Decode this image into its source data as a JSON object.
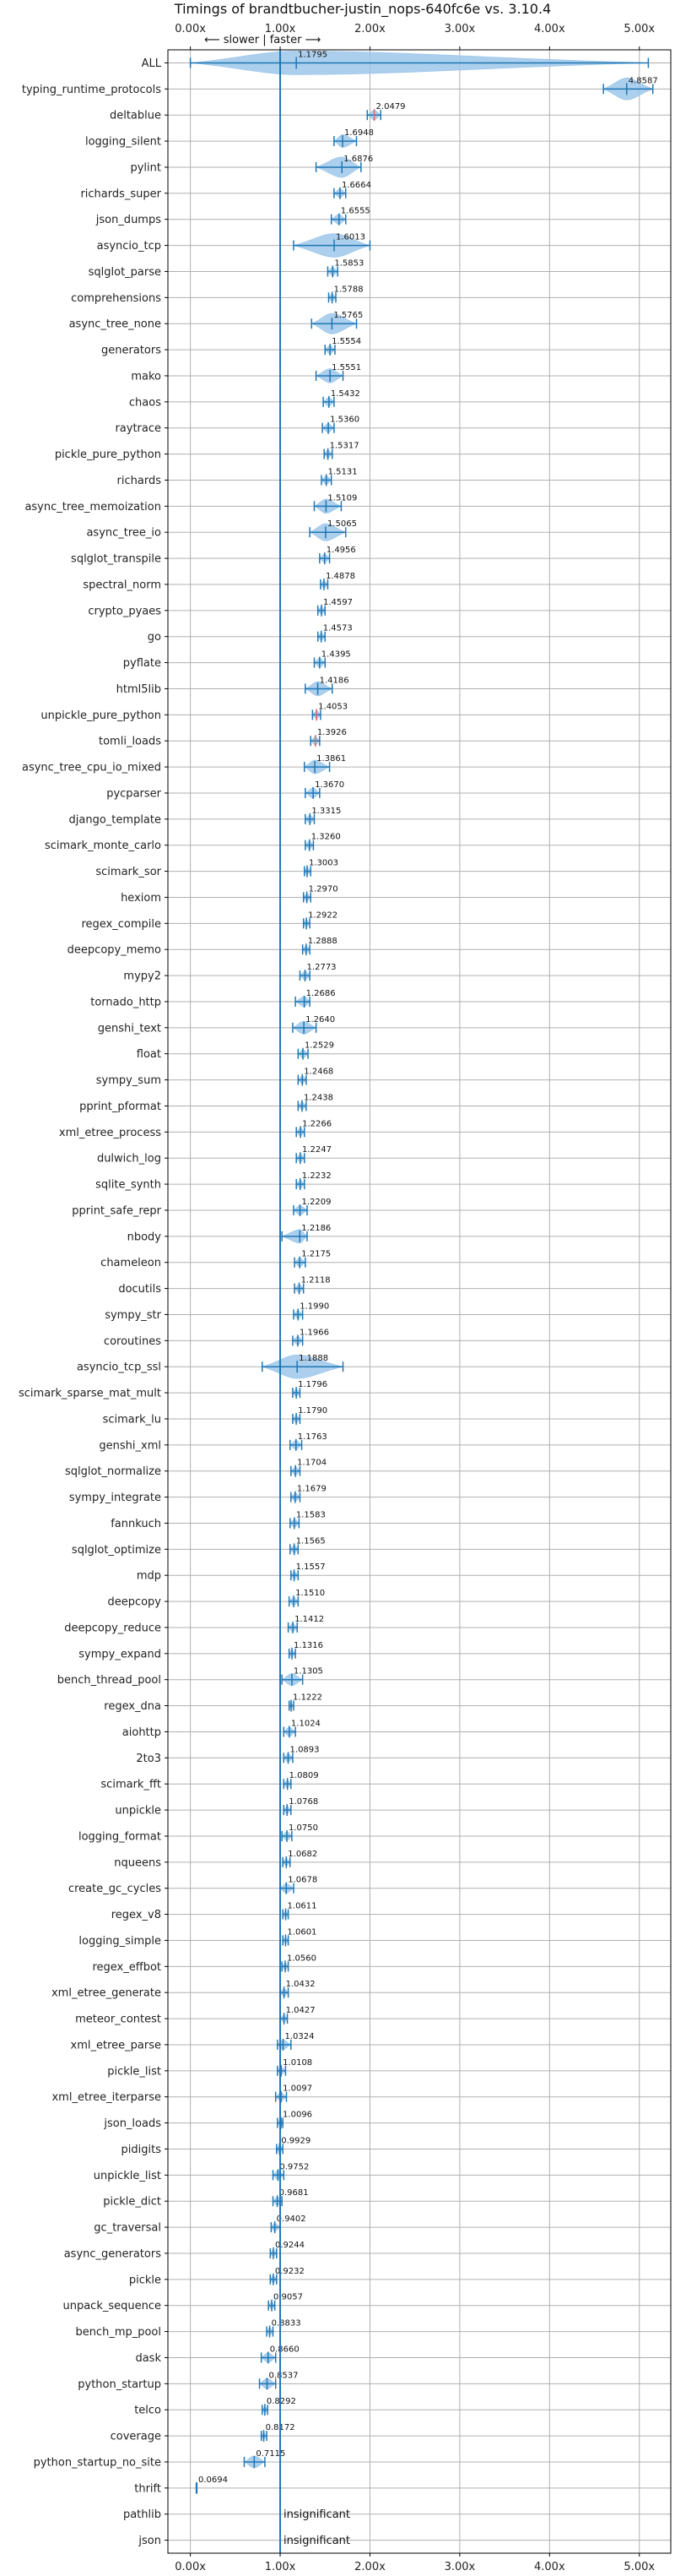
{
  "chart_data": {
    "type": "violin",
    "title": "Timings of brandtbucher-justin_nops-640fc6e vs. 3.10.4",
    "annotation": "⟵ slower  |  faster ⟶",
    "x_ticks": [
      "0.00x",
      "1.00x",
      "2.00x",
      "3.00x",
      "4.00x",
      "5.00x"
    ],
    "x_tick_values": [
      0,
      1,
      2,
      3,
      4,
      5
    ],
    "xlim": [
      -0.25,
      5.35
    ],
    "reference_line": 1.0,
    "grid": true,
    "colors": {
      "violin": "#9ec7ea",
      "line": "#1f77b4",
      "median": "#e06666",
      "grid": "#b0b0b0"
    },
    "categories": [
      "ALL",
      "typing_runtime_protocols",
      "deltablue",
      "logging_silent",
      "pylint",
      "richards_super",
      "json_dumps",
      "asyncio_tcp",
      "sqlglot_parse",
      "comprehensions",
      "async_tree_none",
      "generators",
      "mako",
      "chaos",
      "raytrace",
      "pickle_pure_python",
      "richards",
      "async_tree_memoization",
      "async_tree_io",
      "sqlglot_transpile",
      "spectral_norm",
      "crypto_pyaes",
      "go",
      "pyflate",
      "html5lib",
      "unpickle_pure_python",
      "tomli_loads",
      "async_tree_cpu_io_mixed",
      "pycparser",
      "django_template",
      "scimark_monte_carlo",
      "scimark_sor",
      "hexiom",
      "regex_compile",
      "deepcopy_memo",
      "mypy2",
      "tornado_http",
      "genshi_text",
      "float",
      "sympy_sum",
      "pprint_pformat",
      "xml_etree_process",
      "dulwich_log",
      "sqlite_synth",
      "pprint_safe_repr",
      "nbody",
      "chameleon",
      "docutils",
      "sympy_str",
      "coroutines",
      "asyncio_tcp_ssl",
      "scimark_sparse_mat_mult",
      "scimark_lu",
      "genshi_xml",
      "sqlglot_normalize",
      "sympy_integrate",
      "fannkuch",
      "sqlglot_optimize",
      "mdp",
      "deepcopy",
      "deepcopy_reduce",
      "sympy_expand",
      "bench_thread_pool",
      "regex_dna",
      "aiohttp",
      "2to3",
      "scimark_fft",
      "unpickle",
      "logging_format",
      "nqueens",
      "create_gc_cycles",
      "regex_v8",
      "logging_simple",
      "regex_effbot",
      "xml_etree_generate",
      "meteor_contest",
      "xml_etree_parse",
      "pickle_list",
      "xml_etree_iterparse",
      "json_loads",
      "pidigits",
      "unpickle_list",
      "pickle_dict",
      "gc_traversal",
      "async_generators",
      "pickle",
      "unpack_sequence",
      "bench_mp_pool",
      "dask",
      "python_startup",
      "telco",
      "coverage",
      "python_startup_no_site",
      "thrift",
      "pathlib",
      "json"
    ],
    "values": [
      1.1795,
      4.8587,
      2.0479,
      1.6948,
      1.6876,
      1.6664,
      1.6555,
      1.6013,
      1.5853,
      1.5788,
      1.5765,
      1.5554,
      1.5551,
      1.5432,
      1.536,
      1.5317,
      1.5131,
      1.5109,
      1.5065,
      1.4956,
      1.4878,
      1.4597,
      1.4573,
      1.4395,
      1.4186,
      1.4053,
      1.3926,
      1.3861,
      1.367,
      1.3315,
      1.326,
      1.3003,
      1.297,
      1.2922,
      1.2888,
      1.2773,
      1.2686,
      1.264,
      1.2529,
      1.2468,
      1.2438,
      1.2266,
      1.2247,
      1.2232,
      1.2209,
      1.2186,
      1.2175,
      1.2118,
      1.199,
      1.1966,
      1.1888,
      1.1796,
      1.179,
      1.1763,
      1.1704,
      1.1679,
      1.1583,
      1.1565,
      1.1557,
      1.151,
      1.1412,
      1.1316,
      1.1305,
      1.1222,
      1.1024,
      1.0893,
      1.0809,
      1.0768,
      1.075,
      1.0682,
      1.0678,
      1.0611,
      1.0601,
      1.056,
      1.0432,
      1.0427,
      1.0324,
      1.0108,
      1.0097,
      1.0096,
      0.9929,
      0.9752,
      0.9681,
      0.9402,
      0.9244,
      0.9232,
      0.9057,
      0.8833,
      0.866,
      0.8537,
      0.8292,
      0.8172,
      0.7115,
      0.0694,
      null,
      null
    ],
    "labels": [
      "1.1795",
      "4.8587",
      "2.0479",
      "1.6948",
      "1.6876",
      "1.6664",
      "1.6555",
      "1.6013",
      "1.5853",
      "1.5788",
      "1.5765",
      "1.5554",
      "1.5551",
      "1.5432",
      "1.5360",
      "1.5317",
      "1.5131",
      "1.5109",
      "1.5065",
      "1.4956",
      "1.4878",
      "1.4597",
      "1.4573",
      "1.4395",
      "1.4186",
      "1.4053",
      "1.3926",
      "1.3861",
      "1.3670",
      "1.3315",
      "1.3260",
      "1.3003",
      "1.2970",
      "1.2922",
      "1.2888",
      "1.2773",
      "1.2686",
      "1.2640",
      "1.2529",
      "1.2468",
      "1.2438",
      "1.2266",
      "1.2247",
      "1.2232",
      "1.2209",
      "1.2186",
      "1.2175",
      "1.2118",
      "1.1990",
      "1.1966",
      "1.1888",
      "1.1796",
      "1.1790",
      "1.1763",
      "1.1704",
      "1.1679",
      "1.1583",
      "1.1565",
      "1.1557",
      "1.1510",
      "1.1412",
      "1.1316",
      "1.1305",
      "1.1222",
      "1.1024",
      "1.0893",
      "1.0809",
      "1.0768",
      "1.0750",
      "1.0682",
      "1.0678",
      "1.0611",
      "1.0601",
      "1.0560",
      "1.0432",
      "1.0427",
      "1.0324",
      "1.0108",
      "1.0097",
      "1.0096",
      "0.9929",
      "0.9752",
      "0.9681",
      "0.9402",
      "0.9244",
      "0.9232",
      "0.9057",
      "0.8833",
      "0.8660",
      "0.8537",
      "0.8292",
      "0.8172",
      "0.7115",
      "0.0694",
      "insignificant",
      "insignificant"
    ],
    "ranges": [
      [
        0.0,
        5.1
      ],
      [
        4.6,
        5.15
      ],
      [
        1.97,
        2.12
      ],
      [
        1.6,
        1.85
      ],
      [
        1.4,
        1.9
      ],
      [
        1.6,
        1.73
      ],
      [
        1.57,
        1.73
      ],
      [
        1.15,
        2.0
      ],
      [
        1.53,
        1.64
      ],
      [
        1.54,
        1.62
      ],
      [
        1.35,
        1.85
      ],
      [
        1.5,
        1.61
      ],
      [
        1.4,
        1.7
      ],
      [
        1.48,
        1.6
      ],
      [
        1.47,
        1.6
      ],
      [
        1.49,
        1.58
      ],
      [
        1.46,
        1.57
      ],
      [
        1.38,
        1.68
      ],
      [
        1.33,
        1.73
      ],
      [
        1.44,
        1.55
      ],
      [
        1.45,
        1.53
      ],
      [
        1.42,
        1.5
      ],
      [
        1.42,
        1.5
      ],
      [
        1.38,
        1.5
      ],
      [
        1.28,
        1.58
      ],
      [
        1.36,
        1.45
      ],
      [
        1.34,
        1.44
      ],
      [
        1.27,
        1.55
      ],
      [
        1.28,
        1.44
      ],
      [
        1.28,
        1.38
      ],
      [
        1.28,
        1.37
      ],
      [
        1.27,
        1.34
      ],
      [
        1.26,
        1.34
      ],
      [
        1.26,
        1.33
      ],
      [
        1.25,
        1.33
      ],
      [
        1.22,
        1.33
      ],
      [
        1.17,
        1.33
      ],
      [
        1.14,
        1.4
      ],
      [
        1.2,
        1.31
      ],
      [
        1.2,
        1.29
      ],
      [
        1.2,
        1.29
      ],
      [
        1.18,
        1.27
      ],
      [
        1.18,
        1.27
      ],
      [
        1.18,
        1.27
      ],
      [
        1.15,
        1.3
      ],
      [
        1.02,
        1.3
      ],
      [
        1.16,
        1.28
      ],
      [
        1.16,
        1.26
      ],
      [
        1.15,
        1.25
      ],
      [
        1.14,
        1.25
      ],
      [
        0.8,
        1.7
      ],
      [
        1.14,
        1.22
      ],
      [
        1.14,
        1.22
      ],
      [
        1.11,
        1.24
      ],
      [
        1.12,
        1.22
      ],
      [
        1.12,
        1.22
      ],
      [
        1.11,
        1.21
      ],
      [
        1.11,
        1.2
      ],
      [
        1.12,
        1.2
      ],
      [
        1.1,
        1.2
      ],
      [
        1.09,
        1.19
      ],
      [
        1.1,
        1.17
      ],
      [
        1.02,
        1.25
      ],
      [
        1.1,
        1.15
      ],
      [
        1.04,
        1.17
      ],
      [
        1.04,
        1.14
      ],
      [
        1.04,
        1.12
      ],
      [
        1.04,
        1.12
      ],
      [
        1.02,
        1.13
      ],
      [
        1.03,
        1.11
      ],
      [
        1.0,
        1.15
      ],
      [
        1.03,
        1.09
      ],
      [
        1.03,
        1.09
      ],
      [
        1.02,
        1.09
      ],
      [
        1.0,
        1.09
      ],
      [
        1.0,
        1.08
      ],
      [
        0.97,
        1.12
      ],
      [
        0.97,
        1.06
      ],
      [
        0.95,
        1.07
      ],
      [
        0.97,
        1.03
      ],
      [
        0.96,
        1.03
      ],
      [
        0.92,
        1.04
      ],
      [
        0.92,
        1.02
      ],
      [
        0.9,
        1.0
      ],
      [
        0.89,
        0.96
      ],
      [
        0.89,
        0.96
      ],
      [
        0.87,
        0.94
      ],
      [
        0.85,
        0.92
      ],
      [
        0.79,
        0.95
      ],
      [
        0.77,
        0.95
      ],
      [
        0.8,
        0.86
      ],
      [
        0.79,
        0.85
      ],
      [
        0.6,
        0.83
      ],
      [
        0.066,
        0.073
      ],
      null,
      null
    ]
  }
}
